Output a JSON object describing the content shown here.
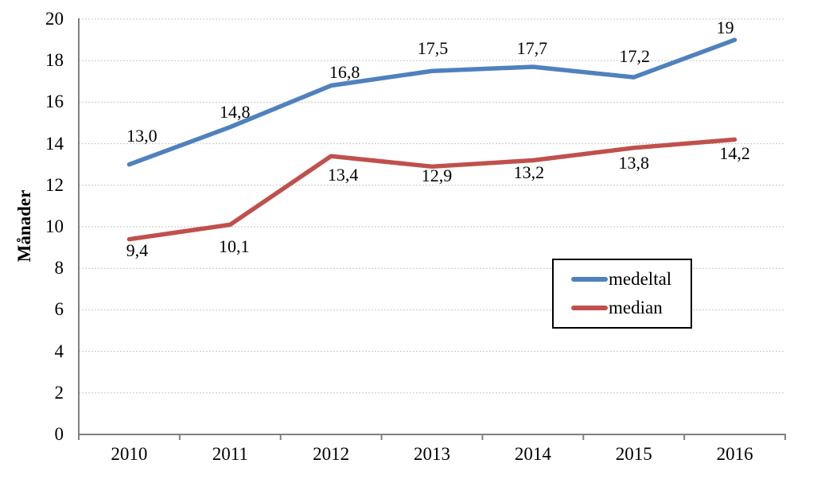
{
  "chart_data": {
    "type": "line",
    "categories": [
      "2010",
      "2011",
      "2012",
      "2013",
      "2014",
      "2015",
      "2016"
    ],
    "series": [
      {
        "name": "medeltal",
        "color": "#4F81BD",
        "values": [
          13.0,
          14.8,
          16.8,
          17.5,
          17.7,
          17.2,
          19
        ],
        "labels": [
          "13,0",
          "14,8",
          "16,8",
          "17,5",
          "17,7",
          "17,2",
          "19"
        ],
        "label_placement": "above"
      },
      {
        "name": "median",
        "color": "#C0504D",
        "values": [
          9.4,
          10.1,
          13.4,
          12.9,
          13.2,
          13.8,
          14.2
        ],
        "labels": [
          "9,4",
          "10,1",
          "13,4",
          "12,9",
          "13,2",
          "13,8",
          "14,2"
        ],
        "label_placement": "below"
      }
    ],
    "title": "",
    "xlabel": "",
    "ylabel": "Månader",
    "ylim": [
      0,
      20
    ],
    "ytick_step": 2,
    "ytick_labels": [
      "0",
      "2",
      "4",
      "6",
      "8",
      "10",
      "12",
      "14",
      "16",
      "18",
      "20"
    ],
    "grid": true,
    "legend_position": "inside-right",
    "colors": {
      "axis": "#808080",
      "gridline": "#c6c6c6",
      "label": "#000000",
      "background": "#ffffff",
      "legend_border": "#000000"
    }
  }
}
